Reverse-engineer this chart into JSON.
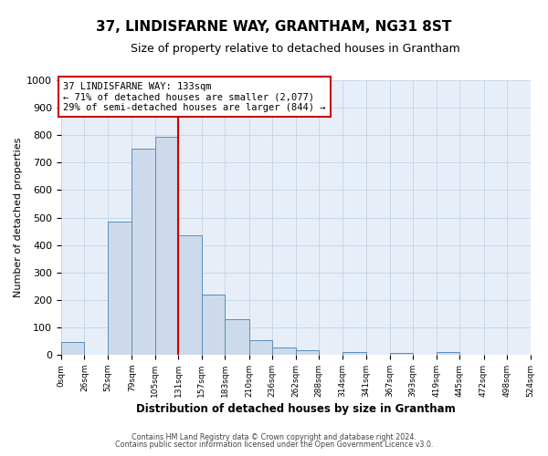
{
  "title": "37, LINDISFARNE WAY, GRANTHAM, NG31 8ST",
  "subtitle": "Size of property relative to detached houses in Grantham",
  "xlabel": "Distribution of detached houses by size in Grantham",
  "ylabel": "Number of detached properties",
  "bin_edges": [
    0,
    26,
    52,
    79,
    105,
    131,
    157,
    183,
    210,
    236,
    262,
    288,
    314,
    341,
    367,
    393,
    419,
    445,
    472,
    498,
    524
  ],
  "bar_heights": [
    45,
    0,
    485,
    750,
    795,
    435,
    220,
    128,
    52,
    28,
    15,
    0,
    10,
    0,
    8,
    0,
    10,
    0,
    0,
    0
  ],
  "tick_labels": [
    "0sqm",
    "26sqm",
    "52sqm",
    "79sqm",
    "105sqm",
    "131sqm",
    "157sqm",
    "183sqm",
    "210sqm",
    "236sqm",
    "262sqm",
    "288sqm",
    "314sqm",
    "341sqm",
    "367sqm",
    "393sqm",
    "419sqm",
    "445sqm",
    "472sqm",
    "498sqm",
    "524sqm"
  ],
  "bar_color": "#ccdaeb",
  "bar_edge_color": "#5b8db8",
  "vline_x": 131,
  "vline_color": "#cc0000",
  "ylim": [
    0,
    1000
  ],
  "yticks": [
    0,
    100,
    200,
    300,
    400,
    500,
    600,
    700,
    800,
    900,
    1000
  ],
  "annotation_title": "37 LINDISFARNE WAY: 133sqm",
  "annotation_line1": "← 71% of detached houses are smaller (2,077)",
  "annotation_line2": "29% of semi-detached houses are larger (844) →",
  "grid_color": "#c8d8e8",
  "bg_color": "#ffffff",
  "plot_bg_color": "#e8eef8",
  "title_fontsize": 11,
  "subtitle_fontsize": 9,
  "footer_line1": "Contains HM Land Registry data © Crown copyright and database right 2024.",
  "footer_line2": "Contains public sector information licensed under the Open Government Licence v3.0."
}
